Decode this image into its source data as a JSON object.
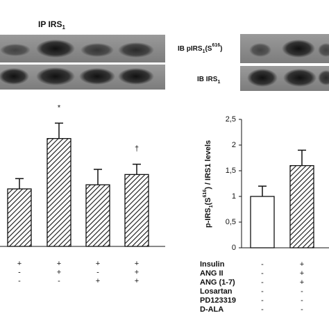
{
  "blots": {
    "ip_label": {
      "main": "IP IRS",
      "sub": "1"
    },
    "row1_label": {
      "main": "IB pIRS",
      "sub": "1",
      "mid": "(S",
      "sup": "616",
      "end": ")"
    },
    "row2_label": {
      "main": "IB IRS",
      "sub": "1"
    }
  },
  "chart_data": [
    {
      "type": "bar",
      "ylim": [
        0,
        2.5
      ],
      "values": [
        1.12,
        2.1,
        1.2,
        1.4
      ],
      "errors": [
        0.2,
        0.3,
        0.3,
        0.2
      ],
      "fills": [
        "hatched",
        "hatched",
        "hatched",
        "hatched"
      ],
      "annotations": [
        null,
        "*",
        null,
        "†"
      ],
      "conditions": [
        {
          "values": [
            "+",
            "+",
            "+",
            "+"
          ]
        },
        {
          "values": [
            "-",
            "+",
            "-",
            "+"
          ]
        },
        {
          "values": [
            "-",
            "-",
            "+",
            "+"
          ]
        }
      ]
    },
    {
      "type": "bar",
      "ylim": [
        0,
        2.5
      ],
      "yticks": [
        0,
        {
          "value": 0.5,
          "label": "0,5"
        },
        1,
        {
          "value": 1.5,
          "label": "1,5"
        },
        2,
        {
          "value": 2.5,
          "label": "2,5"
        }
      ],
      "ylabel": {
        "main": "p-IRS",
        "sub": "1",
        "mid": "(S",
        "sup": "616",
        "end": ") / IRS1 levels"
      },
      "values": [
        1.0,
        1.6
      ],
      "errors": [
        0.2,
        0.3
      ],
      "fills": [
        "white",
        "hatched"
      ],
      "conditions": [
        {
          "label": "Insulin",
          "values": [
            "-",
            "+"
          ]
        },
        {
          "label": "ANG II",
          "values": [
            "-",
            "+"
          ]
        },
        {
          "label": "ANG (1-7)",
          "values": [
            "-",
            "+"
          ]
        },
        {
          "label": "Losartan",
          "values": [
            "-",
            "-"
          ]
        },
        {
          "label": "PD123319",
          "values": [
            "-",
            "-"
          ]
        },
        {
          "label": "D-ALA",
          "values": [
            "-",
            "-"
          ]
        }
      ]
    }
  ]
}
